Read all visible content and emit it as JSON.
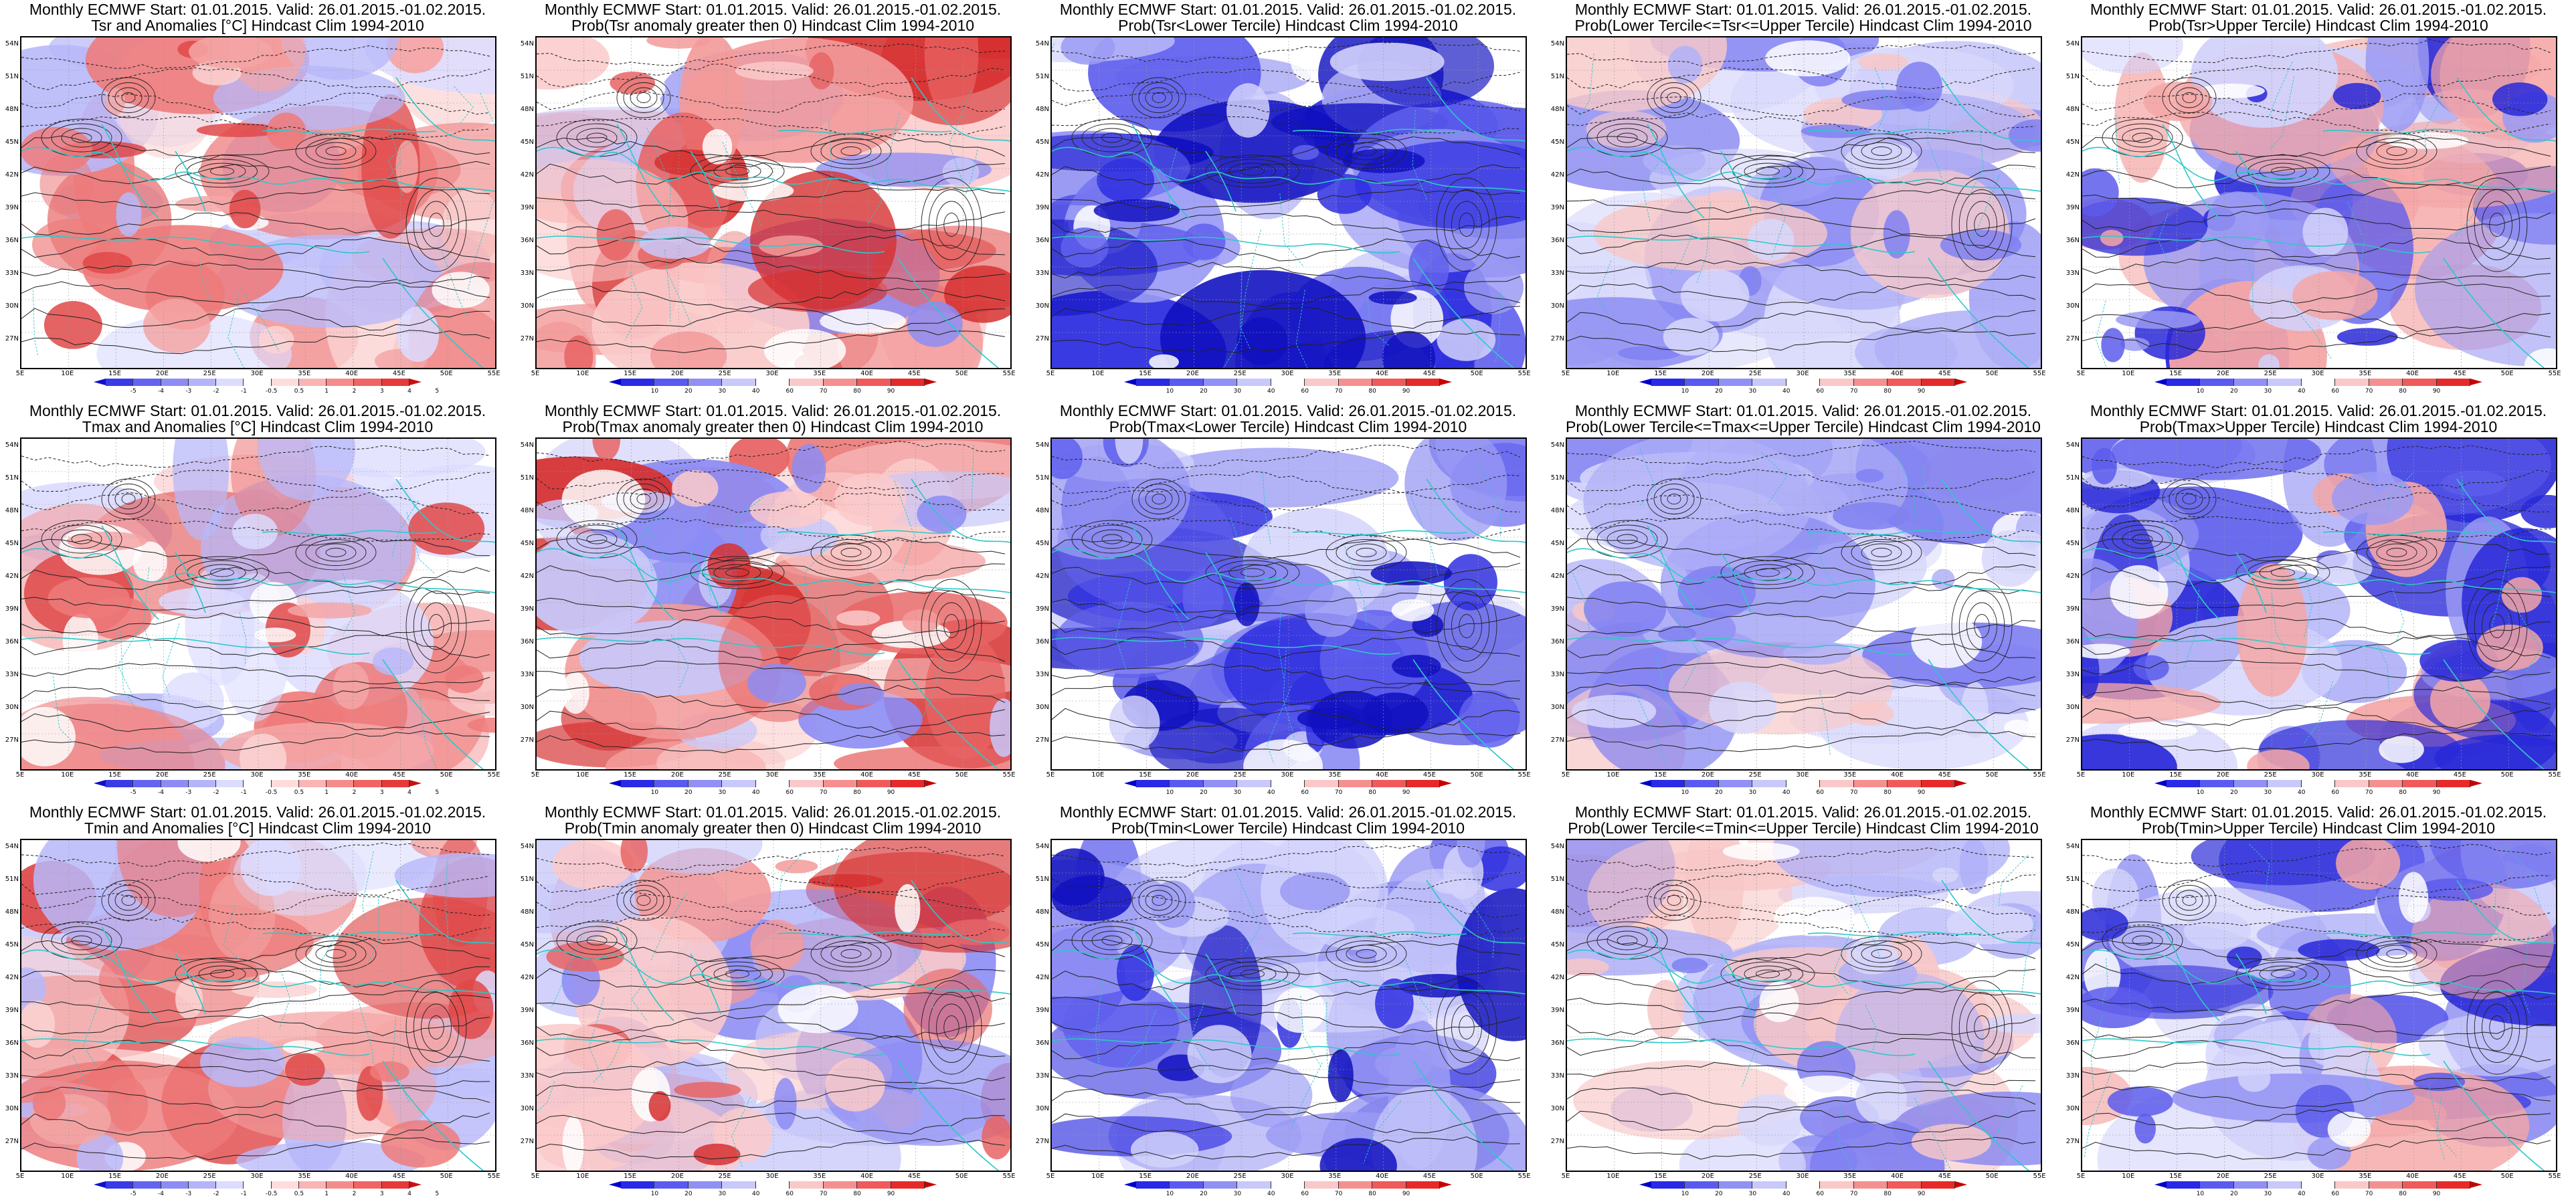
{
  "header_line": "Monthly ECMWF Start: 01.01.2015. Valid: 26.01.2015.-01.02.2015.",
  "rows": [
    {
      "variable": "Tsr",
      "panels": [
        {
          "kind": "anomaly",
          "title2": "Tsr and Anomalies [°C] Hindcast Clim 1994-2010"
        },
        {
          "kind": "prob_pos",
          "title2": "Prob(Tsr anomaly greater then 0) Hindcast Clim 1994-2010"
        },
        {
          "kind": "lower",
          "title2": "Prob(Tsr<Lower Tercile) Hindcast Clim 1994-2010"
        },
        {
          "kind": "middle",
          "title2": "Prob(Lower Tercile<=Tsr<=Upper Tercile) Hindcast Clim 1994-2010"
        },
        {
          "kind": "upper",
          "title2": "Prob(Tsr>Upper Tercile) Hindcast Clim 1994-2010"
        }
      ]
    },
    {
      "variable": "Tmax",
      "panels": [
        {
          "kind": "anomaly",
          "title2": "Tmax and Anomalies [°C] Hindcast Clim 1994-2010"
        },
        {
          "kind": "prob_pos",
          "title2": "Prob(Tmax anomaly greater then 0) Hindcast Clim 1994-2010"
        },
        {
          "kind": "lower",
          "title2": "Prob(Tmax<Lower Tercile) Hindcast Clim 1994-2010"
        },
        {
          "kind": "middle",
          "title2": "Prob(Lower Tercile<=Tmax<=Upper Tercile) Hindcast Clim 1994-2010"
        },
        {
          "kind": "upper",
          "title2": "Prob(Tmax>Upper Tercile) Hindcast Clim 1994-2010"
        }
      ]
    },
    {
      "variable": "Tmin",
      "panels": [
        {
          "kind": "anomaly",
          "title2": "Tmin and Anomalies [°C] Hindcast Clim 1994-2010"
        },
        {
          "kind": "prob_pos",
          "title2": "Prob(Tmin anomaly greater then 0) Hindcast Clim 1994-2010"
        },
        {
          "kind": "lower",
          "title2": "Prob(Tmin<Lower Tercile) Hindcast Clim 1994-2010"
        },
        {
          "kind": "middle",
          "title2": "Prob(Lower Tercile<=Tmin<=Upper Tercile) Hindcast Clim 1994-2010"
        },
        {
          "kind": "upper",
          "title2": "Prob(Tmin>Upper Tercile) Hindcast Clim 1994-2010"
        }
      ]
    }
  ],
  "map_axes": {
    "lat_labels": [
      "54N",
      "51N",
      "48N",
      "45N",
      "42N",
      "39N",
      "36N",
      "33N",
      "30N",
      "27N"
    ],
    "lon_labels": [
      "5E",
      "10E",
      "15E",
      "20E",
      "25E",
      "30E",
      "35E",
      "40E",
      "45E",
      "50E",
      "55E"
    ],
    "lat_range": [
      25,
      55
    ],
    "lon_range": [
      5,
      55
    ]
  },
  "colorbars": {
    "anomaly": {
      "labels": [
        "-5",
        "-4",
        "-3",
        "-2",
        "-1",
        "-0.5",
        "0.5",
        "1",
        "2",
        "3",
        "4",
        "5"
      ],
      "colors": [
        "#1010c8",
        "#3a3ae6",
        "#6464f0",
        "#8c8cf5",
        "#b4b4fa",
        "#dcdcff",
        "#ffffff",
        "#ffdcdc",
        "#fab4b4",
        "#f58c8c",
        "#f06464",
        "#e63a3a",
        "#c81010"
      ]
    },
    "probability": {
      "labels": [
        "10",
        "20",
        "30",
        "40",
        "60",
        "70",
        "80",
        "90"
      ],
      "colors": [
        "#0000c8",
        "#2a2ae6",
        "#5a5af0",
        "#9090f5",
        "#c8c8fa",
        "#ffffff",
        "#fac8c8",
        "#f59090",
        "#f05a5a",
        "#e62a2a",
        "#c80000"
      ]
    }
  },
  "fill_palettes": {
    "anomaly": [
      "#ffffff",
      "#fbd3d3",
      "#f5a6a6",
      "#ee7a7a",
      "#e04848",
      "#dcdcff",
      "#b8b8fa"
    ],
    "prob_pos": [
      "#ffffff",
      "#fbcaca",
      "#f39a9a",
      "#e86464",
      "#d63030",
      "#c8c8fa",
      "#8c8cf5"
    ],
    "lower": [
      "#ffffff",
      "#d2d2fc",
      "#9a9af5",
      "#6060ee",
      "#2f2fe0",
      "#1010c0"
    ],
    "middle": [
      "#ffffff",
      "#d8d8fc",
      "#b0b0f8",
      "#8080f2",
      "#f8c8c8"
    ],
    "upper": [
      "#ffffff",
      "#d2d2fc",
      "#9a9af5",
      "#5c5cec",
      "#2828d8",
      "#f5a6a6"
    ]
  },
  "style": {
    "coast_color": "#2ec8c8",
    "contour_color": "#222222"
  }
}
